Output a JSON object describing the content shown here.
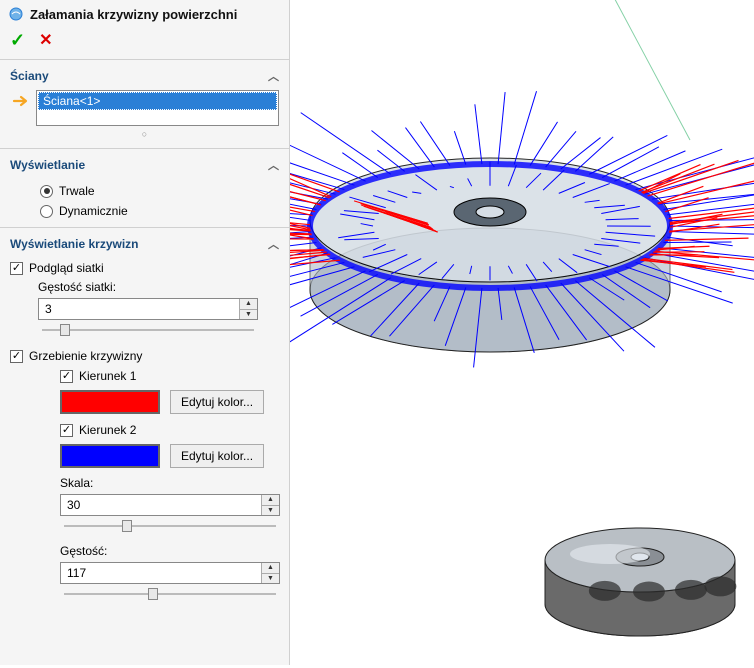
{
  "panel": {
    "title": "Załamania krzywizny powierzchni",
    "face_section": {
      "title": "Ściany",
      "selected": "Ściana<1>"
    },
    "display_section": {
      "title": "Wyświetlanie",
      "permanent": {
        "label": "Trwale",
        "checked": true
      },
      "dynamic": {
        "label": "Dynamicznie",
        "checked": false
      }
    },
    "curv_section": {
      "title": "Wyświetlanie krzywizn",
      "mesh_preview": {
        "label": "Podgląd siatki",
        "checked": true
      },
      "mesh_density": {
        "label": "Gęstość siatki:",
        "value": "3",
        "slider_pos_pct": 10
      },
      "combs": {
        "label": "Grzebienie krzywizny",
        "checked": true,
        "dir1": {
          "label": "Kierunek 1",
          "checked": true,
          "color": "#ff0000"
        },
        "dir2": {
          "label": "Kierunek 2",
          "checked": true,
          "color": "#0000ff"
        },
        "edit_btn": "Edytuj kolor...",
        "scale": {
          "label": "Skala:",
          "value": "30",
          "slider_pos_pct": 28
        },
        "density": {
          "label": "Gęstość:",
          "value": "117",
          "slider_pos_pct": 40
        }
      }
    }
  },
  "viewport": {
    "model_fill": "#a8b4c0",
    "model_highlight": "#d5dde5",
    "model_dark": "#5a6672",
    "outline": "#000000",
    "comb1_stroke": "#ff0000",
    "comb2_stroke": "#0000ff",
    "ground_plane": "#f2f2f2"
  }
}
